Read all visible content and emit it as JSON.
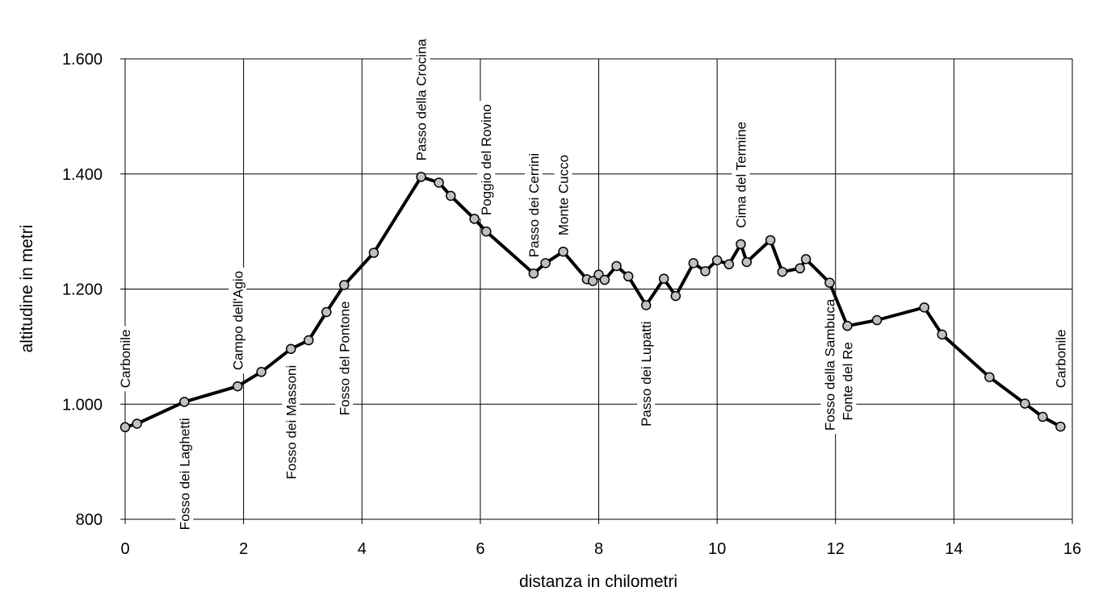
{
  "chart_data": {
    "type": "line",
    "title": "",
    "xlabel": "distanza in chilometri",
    "ylabel": "altitudine  in metri",
    "xlim": [
      0,
      16
    ],
    "ylim": [
      800,
      1600
    ],
    "x_ticks": [
      0,
      2,
      4,
      6,
      8,
      10,
      12,
      14,
      16
    ],
    "x_tick_labels": [
      "0",
      "2",
      "4",
      "6",
      "8",
      "10",
      "12",
      "14",
      "16"
    ],
    "y_ticks": [
      800,
      1000,
      1200,
      1400,
      1600
    ],
    "y_tick_labels": [
      "800",
      "1.000",
      "1.200",
      "1.400",
      "1.600"
    ],
    "grid": true,
    "legend": "none",
    "colors": {
      "line": "#000000",
      "marker_fill": "#c0c0c0",
      "marker_edge": "#000000"
    },
    "series": [
      {
        "x": [
          0,
          0.2,
          1.0,
          1.9,
          2.3,
          2.8,
          3.1,
          3.4,
          3.7,
          4.2,
          5.0,
          5.3,
          5.5,
          5.9,
          6.1,
          6.9,
          7.1,
          7.4,
          7.8,
          7.9,
          8.0,
          8.1,
          8.3,
          8.5,
          8.8,
          9.1,
          9.3,
          9.6,
          9.8,
          10.0,
          10.2,
          10.4,
          10.5,
          10.9,
          11.1,
          11.4,
          11.5,
          11.9,
          12.2,
          12.7,
          13.5,
          13.8,
          14.6,
          15.2,
          15.5,
          15.8
        ],
        "values": [
          960,
          966,
          1004,
          1031,
          1056,
          1096,
          1111,
          1160,
          1207,
          1263,
          1395,
          1385,
          1362,
          1322,
          1300,
          1227,
          1245,
          1265,
          1217,
          1214,
          1225,
          1216,
          1240,
          1222,
          1172,
          1218,
          1188,
          1245,
          1231,
          1250,
          1243,
          1278,
          1247,
          1285,
          1230,
          1236,
          1252,
          1211,
          1136,
          1146,
          1168,
          1121,
          1047,
          1001,
          978,
          961
        ]
      }
    ],
    "annotations": [
      {
        "text": "Carbonile",
        "x": 0.0,
        "y": 1000,
        "pos": "above"
      },
      {
        "text": "Fosso dei Laghetti",
        "x": 1.0,
        "y": 1004,
        "pos": "below"
      },
      {
        "text": "Campo dell'Agio",
        "x": 1.9,
        "y": 1031,
        "pos": "above"
      },
      {
        "text": "Fosso dei Massoni",
        "x": 2.8,
        "y": 1096,
        "pos": "below"
      },
      {
        "text": "Fosso del Pontone",
        "x": 3.7,
        "y": 1207,
        "pos": "below"
      },
      {
        "text": "Passo della Crocina",
        "x": 5.0,
        "y": 1395,
        "pos": "above"
      },
      {
        "text": "Poggio del Rovino",
        "x": 6.1,
        "y": 1300,
        "pos": "above"
      },
      {
        "text": "Passo dei Cerrini",
        "x": 6.9,
        "y": 1227,
        "pos": "above"
      },
      {
        "text": "Monte Cucco",
        "x": 7.4,
        "y": 1265,
        "pos": "above"
      },
      {
        "text": "Passo dei Lupatti",
        "x": 8.8,
        "y": 1172,
        "pos": "below"
      },
      {
        "text": "Cima del Termine",
        "x": 10.4,
        "y": 1278,
        "pos": "above"
      },
      {
        "text": "Fosso della Sambuca",
        "x": 11.9,
        "y": 1211,
        "pos": "below"
      },
      {
        "text": "Fonte del Re",
        "x": 12.2,
        "y": 1136,
        "pos": "below"
      },
      {
        "text": "Carbonile",
        "x": 15.8,
        "y": 1000,
        "pos": "above"
      }
    ]
  }
}
